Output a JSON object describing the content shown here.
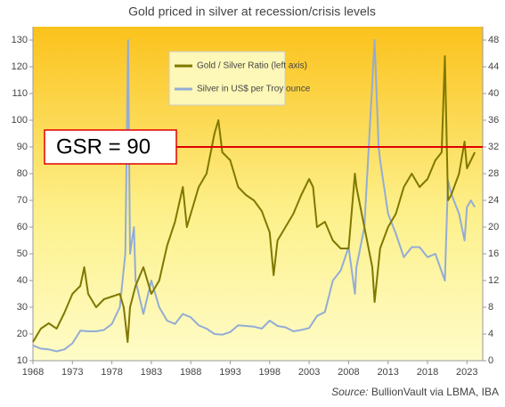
{
  "chart_data": {
    "type": "line",
    "title": "Gold priced in silver at recession/crisis levels",
    "source_label": "Source:",
    "source_text": "BullionVault via LBMA, IBA",
    "annotation": {
      "text": "GSR = 90",
      "y": 90,
      "color": "#e00000"
    },
    "xlim": [
      1968,
      2025
    ],
    "xticks": [
      1968,
      1973,
      1978,
      1983,
      1988,
      1993,
      1998,
      2003,
      2008,
      2013,
      2018,
      2023
    ],
    "ylim": [
      10,
      135
    ],
    "yticks": [
      10,
      20,
      30,
      40,
      50,
      60,
      70,
      80,
      90,
      100,
      110,
      120,
      130
    ],
    "y2lim": [
      0,
      50
    ],
    "y2ticks": [
      0,
      4,
      8,
      12,
      16,
      20,
      24,
      28,
      32,
      36,
      40,
      44,
      48
    ],
    "legend": "upper left",
    "series": [
      {
        "name": "Gold / Silver Ratio (left axis)",
        "color": "#7f7800",
        "axis": "y",
        "x": [
          1968,
          1969,
          1970,
          1971,
          1972,
          1973,
          1974,
          1974.5,
          1975,
          1976,
          1977,
          1978,
          1979,
          1979.5,
          1980,
          1980.3,
          1981,
          1982,
          1983,
          1984,
          1985,
          1986,
          1987,
          1987.5,
          1988,
          1989,
          1990,
          1991,
          1991.5,
          1992,
          1993,
          1994,
          1995,
          1996,
          1997,
          1998,
          1998.5,
          1999,
          2000,
          2001,
          2002,
          2003,
          2003.5,
          2004,
          2005,
          2006,
          2007,
          2008,
          2008.8,
          2009,
          2010,
          2011,
          2011.3,
          2012,
          2013,
          2014,
          2015,
          2016,
          2017,
          2018,
          2019,
          2019.8,
          2020.2,
          2020.6,
          2021,
          2022,
          2022.7,
          2023,
          2023.5,
          2024
        ],
        "values": [
          17,
          22,
          24,
          22,
          28,
          35,
          38,
          45,
          35,
          30,
          33,
          34,
          35,
          30,
          17,
          30,
          38,
          45,
          35,
          40,
          53,
          62,
          75,
          60,
          65,
          75,
          80,
          95,
          100,
          88,
          85,
          75,
          72,
          70,
          66,
          58,
          42,
          55,
          60,
          65,
          72,
          78,
          75,
          60,
          62,
          55,
          52,
          52,
          80,
          75,
          60,
          45,
          32,
          52,
          60,
          65,
          75,
          80,
          75,
          78,
          85,
          88,
          124,
          70,
          72,
          80,
          92,
          82,
          85,
          88
        ]
      },
      {
        "name": "Silver in US$ per Troy ounce",
        "color": "#93acd6",
        "axis": "y2",
        "x": [
          1968,
          1969,
          1970,
          1971,
          1972,
          1973,
          1974,
          1975,
          1976,
          1977,
          1978,
          1979,
          1979.7,
          1980.05,
          1980.3,
          1980.8,
          1981,
          1982,
          1983,
          1984,
          1985,
          1986,
          1987,
          1988,
          1989,
          1990,
          1991,
          1992,
          1993,
          1994,
          1995,
          1996,
          1997,
          1998,
          1999,
          2000,
          2001,
          2002,
          2003,
          2004,
          2005,
          2006,
          2007,
          2008,
          2008.8,
          2009,
          2010,
          2011.3,
          2011.8,
          2012,
          2013,
          2014,
          2015,
          2016,
          2017,
          2018,
          2019,
          2020.2,
          2020.6,
          2021,
          2022,
          2022.7,
          2023,
          2023.5,
          2024
        ],
        "values": [
          2.3,
          1.8,
          1.7,
          1.4,
          1.7,
          2.6,
          4.5,
          4.4,
          4.4,
          4.6,
          5.5,
          8,
          16,
          48,
          16,
          20,
          12,
          7,
          12,
          8,
          6,
          5.5,
          7,
          6.5,
          5.3,
          4.8,
          4,
          3.9,
          4.3,
          5.3,
          5.2,
          5.1,
          4.8,
          6,
          5.2,
          5,
          4.4,
          4.6,
          4.9,
          6.7,
          7.3,
          12,
          13.5,
          17,
          10,
          14,
          20,
          48,
          32,
          30,
          22,
          19,
          15.5,
          17,
          17,
          15.5,
          16,
          12,
          27,
          25,
          22,
          18,
          23,
          24,
          23
        ]
      }
    ]
  }
}
